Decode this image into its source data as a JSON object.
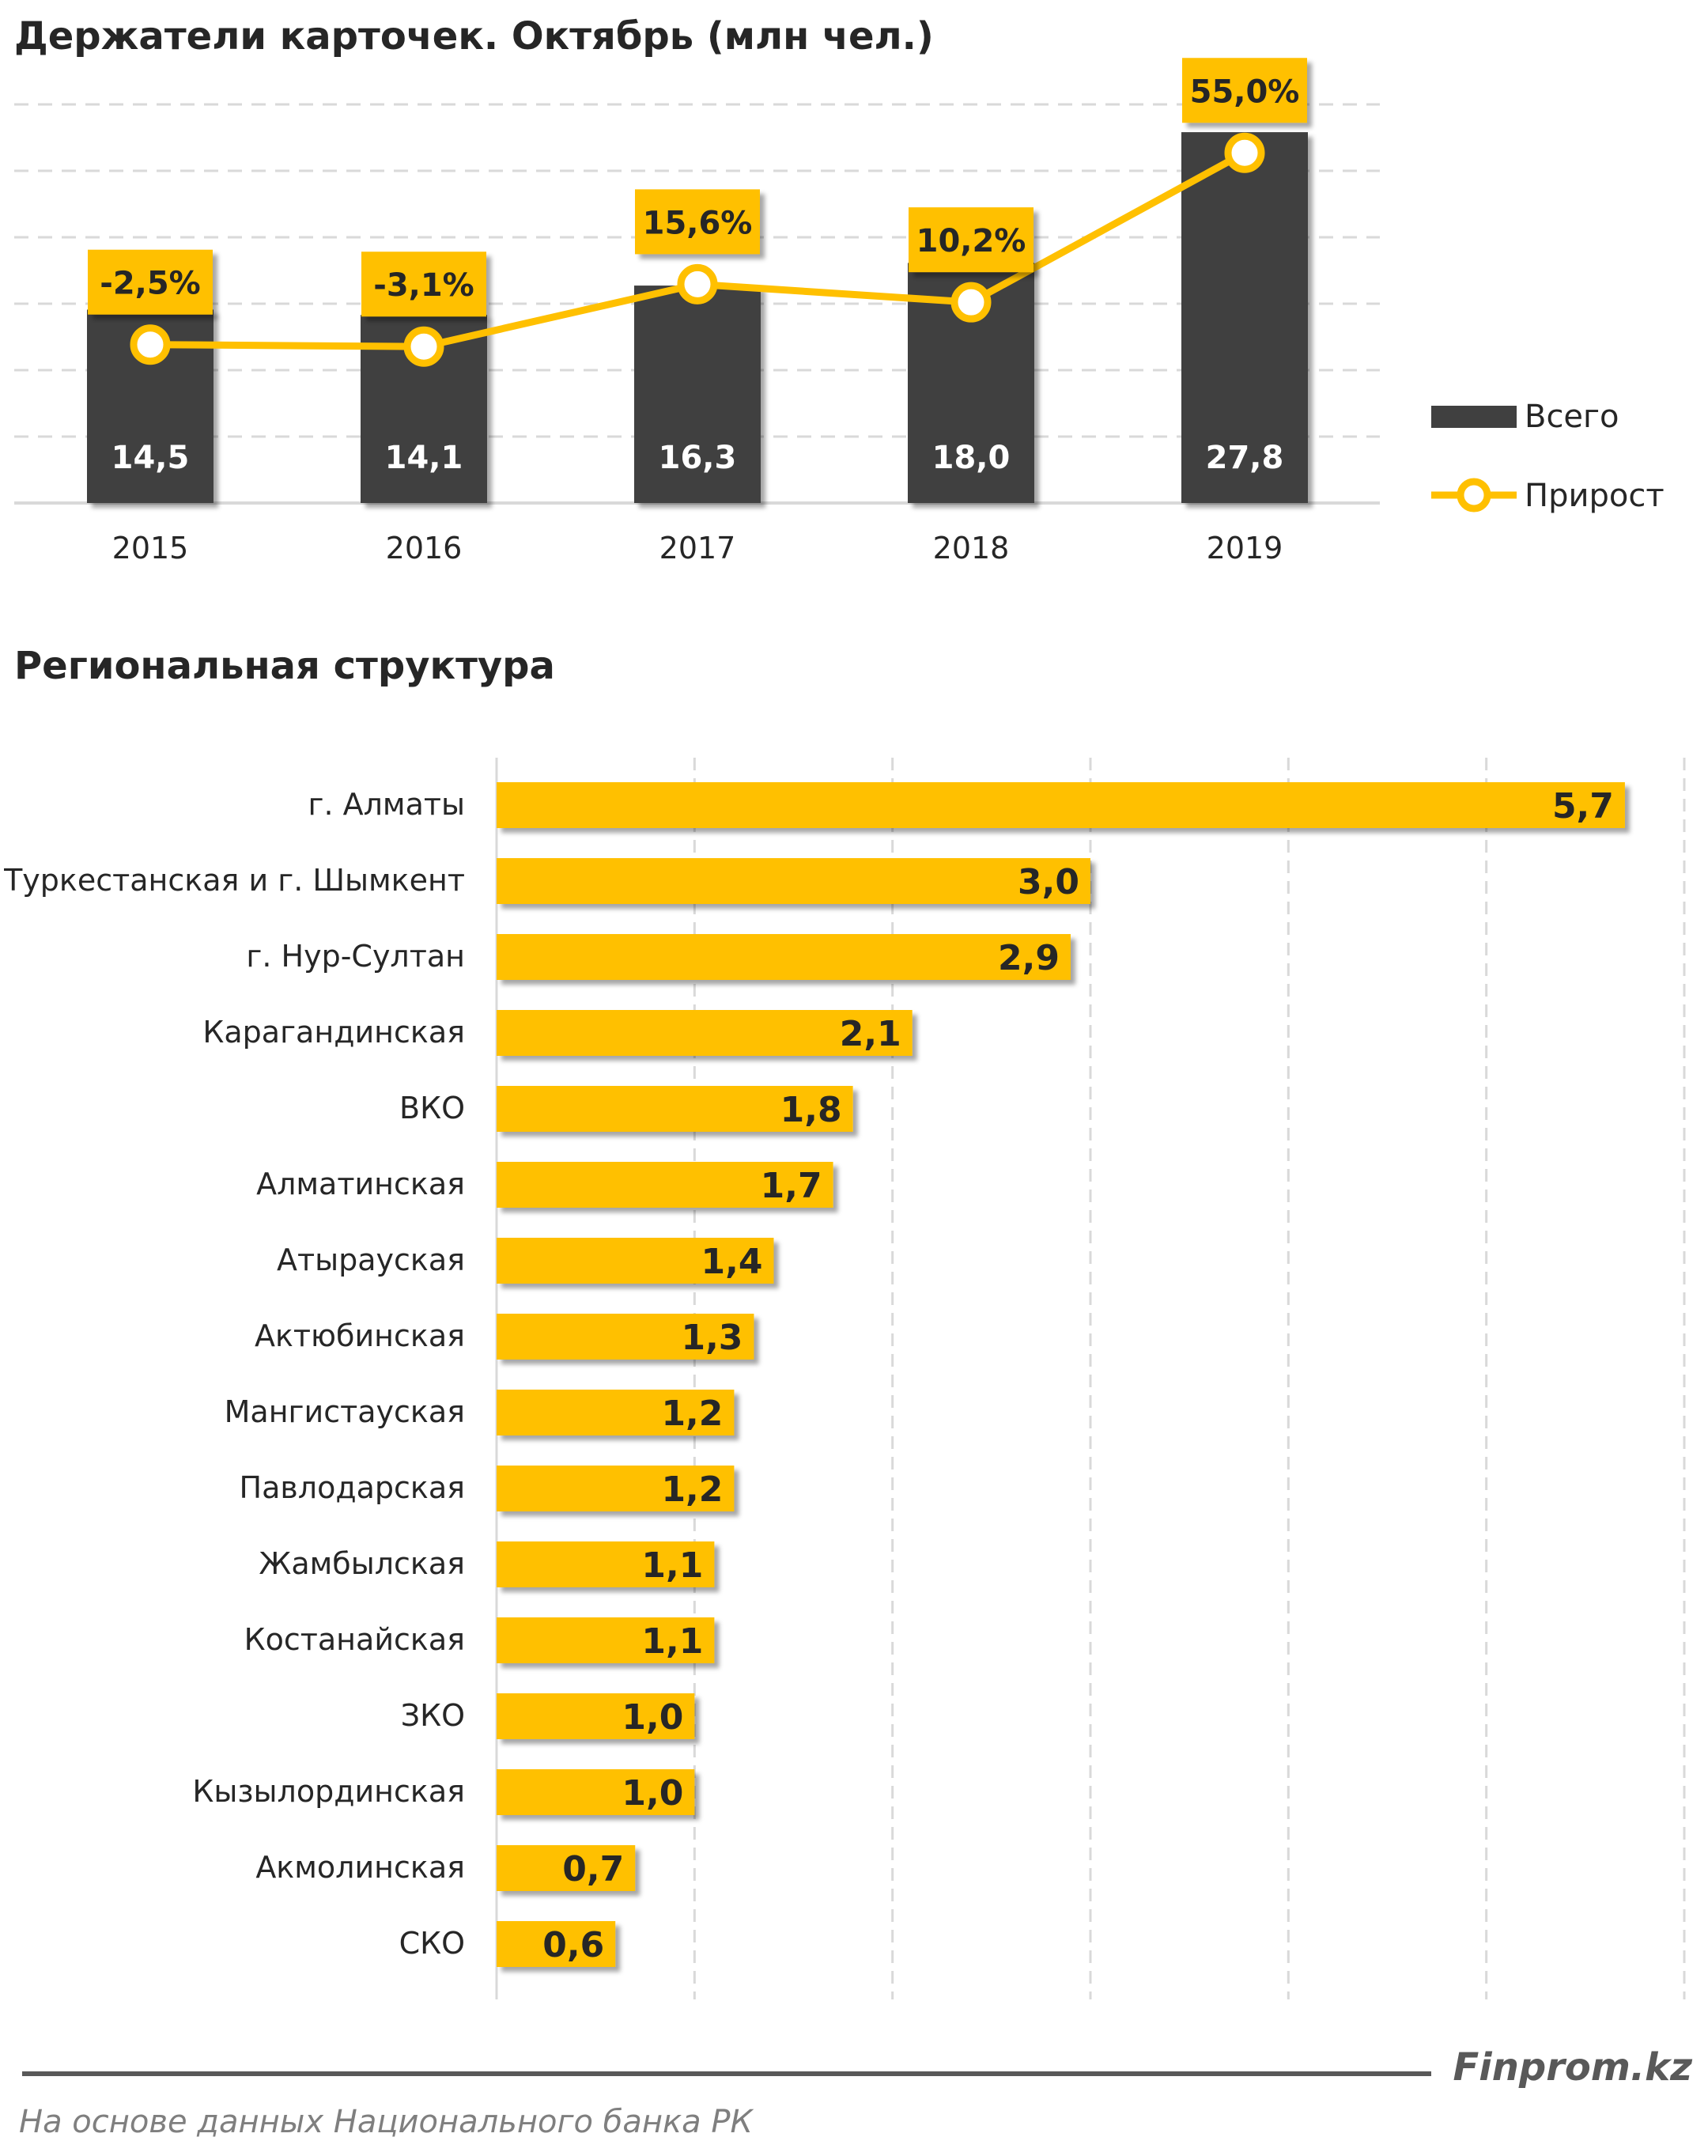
{
  "colors": {
    "accent": "#FFC000",
    "dark_bar": "#404040",
    "text": "#262626",
    "grid": "#D9D9D9",
    "footer_text": "#595959"
  },
  "chart_data": [
    {
      "type": "bar",
      "title": "Держатели карточек. Октябрь (млн чел.)",
      "categories": [
        "2015",
        "2016",
        "2017",
        "2018",
        "2019"
      ],
      "series": [
        {
          "name": "Всего",
          "values": [
            14.5,
            14.1,
            16.3,
            18.0,
            27.8
          ],
          "labels": [
            "14,5",
            "14,1",
            "16,3",
            "18,0",
            "27,8"
          ]
        },
        {
          "name": "Прирост",
          "type": "line",
          "values": [
            -2.5,
            -3.1,
            15.6,
            10.2,
            55.0
          ],
          "labels": [
            "-2,5%",
            "-3,1%",
            "15,6%",
            "10,2%",
            "55,0%"
          ]
        }
      ],
      "ylim": [
        0,
        30
      ],
      "y2lim": [
        -50,
        70
      ],
      "grid": true,
      "legend_position": "right"
    },
    {
      "type": "bar",
      "orientation": "horizontal",
      "title": "Региональная структура",
      "categories": [
        "г. Алматы",
        "Туркестанская и г. Шымкент",
        "г. Нур-Султан",
        "Карагандинская",
        "ВКО",
        "Алматинская",
        "Атырауская",
        "Актюбинская",
        "Мангистауская",
        "Павлодарская",
        "Жамбылская",
        "Костанайская",
        "ЗКО",
        "Кызылординская",
        "Акмолинская",
        "СКО"
      ],
      "values": [
        5.7,
        3.0,
        2.9,
        2.1,
        1.8,
        1.7,
        1.4,
        1.3,
        1.2,
        1.2,
        1.1,
        1.1,
        1.0,
        1.0,
        0.7,
        0.6
      ],
      "value_labels": [
        "5,7",
        "3,0",
        "2,9",
        "2,1",
        "1,8",
        "1,7",
        "1,4",
        "1,3",
        "1,2",
        "1,2",
        "1,1",
        "1,1",
        "1,0",
        "1,0",
        "0,7",
        "0,6"
      ],
      "xlim": [
        0,
        6
      ],
      "grid": true
    }
  ],
  "footer": {
    "brand": "Finprom.kz",
    "source": "На основе данных Национального банка РК"
  }
}
